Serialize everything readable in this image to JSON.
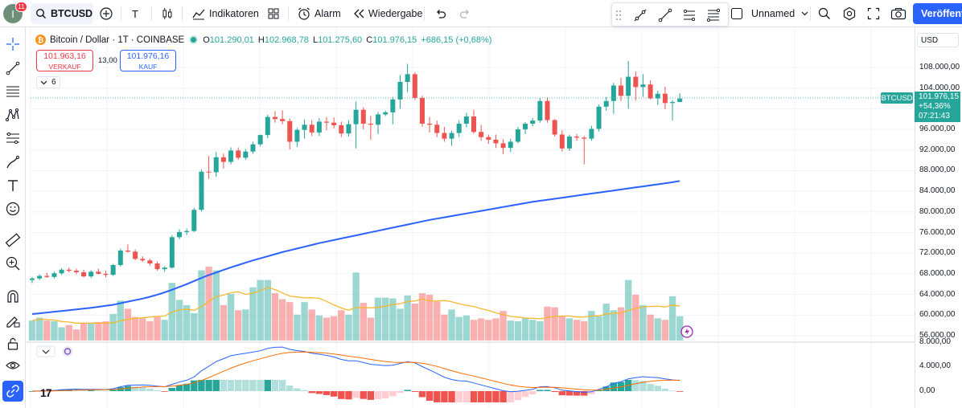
{
  "topbar": {
    "avatar_initial": "I",
    "notification_count": "11",
    "symbol": "BTCUSD",
    "indicators_label": "Indikatoren",
    "alarm_label": "Alarm",
    "replay_label": "Wiedergabe",
    "layout_name": "Unnamed",
    "publish_label": "Veröffentl"
  },
  "legend": {
    "title": "Bitcoin / Dollar · 1T · COINBASE",
    "open_key": "O",
    "open": "101.290,01",
    "high_key": "H",
    "high": "102.968,78",
    "low_key": "L",
    "low": "101.275,60",
    "close_key": "C",
    "close": "101.976,15",
    "change": "+686,15 (+0,68%)"
  },
  "trade": {
    "sell_price": "101.963,16",
    "sell_label": "VERKAUF",
    "spread": "13,00",
    "buy_price": "101.976,16",
    "buy_label": "KAUF",
    "indicator_count": "6"
  },
  "price_axis": {
    "currency": "USD",
    "ticks": [
      "108.000,00",
      "104.000,00",
      "100.000,00",
      "96.000,00",
      "92.000,00",
      "88.000,00",
      "84.000,00",
      "80.000,00",
      "76.000,00",
      "72.000,00",
      "68.000,00",
      "64.000,00",
      "60.000,00",
      "56.000,00"
    ],
    "osc_ticks": [
      "8.000,00",
      "4.000,00",
      "0,00"
    ],
    "last_price": "101.976,15",
    "last_change_pct": "+54,36%",
    "countdown": "07:21:43",
    "symbol_tag": "BTCUSD"
  },
  "colors": {
    "up": "#26a69a",
    "down": "#ef5350",
    "ma": "#2962ff",
    "volume_ma": "#f5b82e",
    "macd_line": "#2962ff",
    "signal_line": "#ff6d00",
    "accent": "#2962ff"
  },
  "chart_data": {
    "type": "candlestick",
    "symbol": "BTCUSD",
    "interval": "1T",
    "exchange": "COINBASE",
    "ylim": [
      56000,
      110000
    ],
    "candles": [
      [
        66800,
        67400,
        66200,
        67100
      ],
      [
        67100,
        67900,
        66800,
        67600
      ],
      [
        67600,
        68200,
        67200,
        67400
      ],
      [
        67400,
        68400,
        67100,
        68100
      ],
      [
        68100,
        69100,
        67800,
        68800
      ],
      [
        68800,
        69200,
        68300,
        68600
      ],
      [
        68600,
        69000,
        67900,
        68300
      ],
      [
        68300,
        68800,
        67300,
        67500
      ],
      [
        67500,
        68700,
        67200,
        68400
      ],
      [
        68400,
        69000,
        67900,
        68000
      ],
      [
        68000,
        68600,
        67300,
        67800
      ],
      [
        67800,
        69900,
        67600,
        69700
      ],
      [
        69700,
        72900,
        69400,
        72500
      ],
      [
        72500,
        73700,
        72100,
        72300
      ],
      [
        72300,
        72700,
        70600,
        70900
      ],
      [
        70900,
        71400,
        70300,
        70600
      ],
      [
        70600,
        70900,
        69600,
        70000
      ],
      [
        70000,
        70400,
        68600,
        68900
      ],
      [
        68900,
        69500,
        68400,
        69200
      ],
      [
        69200,
        75500,
        69000,
        75100
      ],
      [
        75100,
        76600,
        74700,
        76100
      ],
      [
        76100,
        76800,
        75500,
        76300
      ],
      [
        76300,
        80800,
        76100,
        80400
      ],
      [
        80400,
        88200,
        80100,
        87800
      ],
      [
        87800,
        90800,
        86400,
        87700
      ],
      [
        87700,
        91600,
        86800,
        90600
      ],
      [
        90600,
        91300,
        88400,
        89700
      ],
      [
        89700,
        92500,
        89200,
        91900
      ],
      [
        91900,
        92500,
        90100,
        90500
      ],
      [
        90500,
        92200,
        90100,
        91700
      ],
      [
        91700,
        93600,
        91300,
        93100
      ],
      [
        93100,
        95000,
        92700,
        94900
      ],
      [
        94900,
        98800,
        94300,
        98400
      ],
      [
        98400,
        99500,
        97300,
        98000
      ],
      [
        98000,
        99700,
        97000,
        97600
      ],
      [
        97600,
        98100,
        92100,
        93600
      ],
      [
        93600,
        96300,
        92600,
        95900
      ],
      [
        95900,
        97900,
        94200,
        96900
      ],
      [
        96900,
        97800,
        94700,
        95400
      ],
      [
        95400,
        98200,
        94700,
        97500
      ],
      [
        97500,
        98400,
        95800,
        97300
      ],
      [
        97300,
        98300,
        96200,
        96800
      ],
      [
        96800,
        97500,
        94500,
        95200
      ],
      [
        95200,
        97800,
        94600,
        97000
      ],
      [
        97000,
        101400,
        92300,
        99800
      ],
      [
        99800,
        100300,
        96000,
        97100
      ],
      [
        97100,
        98600,
        94000,
        96900
      ],
      [
        96900,
        99400,
        95100,
        98900
      ],
      [
        98900,
        99600,
        98600,
        99300
      ],
      [
        99300,
        102300,
        97000,
        101800
      ],
      [
        101800,
        106500,
        100000,
        105200
      ],
      [
        105200,
        108700,
        103200,
        106700
      ],
      [
        106700,
        107100,
        101700,
        102100
      ],
      [
        102100,
        102500,
        96500,
        97100
      ],
      [
        97100,
        98400,
        95400,
        96900
      ],
      [
        96900,
        97700,
        94500,
        95300
      ],
      [
        95300,
        96500,
        93600,
        94200
      ],
      [
        94200,
        95700,
        92800,
        95300
      ],
      [
        95300,
        97800,
        94500,
        97100
      ],
      [
        97100,
        99200,
        96400,
        98500
      ],
      [
        98500,
        99800,
        95200,
        95500
      ],
      [
        95500,
        96900,
        93800,
        94500
      ],
      [
        94500,
        95000,
        93200,
        94000
      ],
      [
        94000,
        95000,
        92400,
        93300
      ],
      [
        93300,
        94100,
        91200,
        92400
      ],
      [
        92400,
        94200,
        91600,
        93600
      ],
      [
        93600,
        96500,
        93300,
        96000
      ],
      [
        96000,
        97400,
        95100,
        97100
      ],
      [
        97100,
        98200,
        96600,
        97700
      ],
      [
        97700,
        102100,
        97300,
        101500
      ],
      [
        101500,
        102200,
        97300,
        97800
      ],
      [
        97800,
        98000,
        94600,
        95000
      ],
      [
        95000,
        95800,
        91700,
        92300
      ],
      [
        92300,
        95000,
        91800,
        94600
      ],
      [
        94600,
        95100,
        93800,
        94400
      ],
      [
        94400,
        94700,
        89200,
        94200
      ],
      [
        94200,
        96700,
        93800,
        96100
      ],
      [
        96100,
        100800,
        95600,
        100400
      ],
      [
        100400,
        102300,
        99600,
        101500
      ],
      [
        101500,
        105000,
        99000,
        104500
      ],
      [
        104500,
        106000,
        101500,
        102500
      ],
      [
        102500,
        109300,
        100000,
        106200
      ],
      [
        106200,
        107200,
        101600,
        104200
      ],
      [
        104200,
        106700,
        102300,
        104700
      ],
      [
        104700,
        105500,
        101800,
        102000
      ],
      [
        102000,
        103500,
        100700,
        102900
      ],
      [
        102900,
        104300,
        99900,
        101100
      ],
      [
        101100,
        101700,
        97700,
        101300
      ],
      [
        101300,
        102970,
        101280,
        101976
      ]
    ],
    "ma_line": [
      60200,
      60350,
      60500,
      60650,
      60800,
      60950,
      61100,
      61250,
      61400,
      61600,
      61800,
      62000,
      62300,
      62600,
      62900,
      63200,
      63550,
      63950,
      64400,
      64900,
      65450,
      66000,
      66600,
      67200,
      67750,
      68250,
      68750,
      69250,
      69700,
      70150,
      70600,
      71000,
      71400,
      71800,
      72200,
      72550,
      72900,
      73250,
      73600,
      73950,
      74250,
      74550,
      74850,
      75150,
      75450,
      75750,
      76050,
      76350,
      76650,
      76950,
      77250,
      77550,
      77850,
      78150,
      78450,
      78700,
      78950,
      79200,
      79450,
      79700,
      79950,
      80200,
      80450,
      80700,
      80950,
      81200,
      81450,
      81700,
      81950,
      82150,
      82350,
      82550,
      82750,
      82950,
      83150,
      83350,
      83550,
      83750,
      83950,
      84150,
      84350,
      84550,
      84750,
      84950,
      85150,
      85350,
      85550,
      85750,
      86000
    ],
    "volume_relative": [
      0.27,
      0.31,
      0.27,
      0.26,
      0.18,
      0.21,
      0.15,
      0.24,
      0.23,
      0.25,
      0.26,
      0.36,
      0.54,
      0.43,
      0.32,
      0.3,
      0.26,
      0.32,
      0.28,
      0.78,
      0.55,
      0.48,
      0.37,
      0.95,
      1.0,
      0.95,
      0.48,
      0.63,
      0.41,
      0.42,
      0.72,
      0.82,
      0.82,
      0.64,
      0.56,
      0.52,
      0.35,
      0.52,
      0.42,
      0.34,
      0.31,
      0.33,
      0.41,
      0.35,
      0.92,
      0.51,
      0.31,
      0.58,
      0.58,
      0.57,
      0.43,
      0.61,
      0.5,
      0.64,
      0.62,
      0.53,
      0.35,
      0.42,
      0.32,
      0.34,
      0.28,
      0.3,
      0.28,
      0.3,
      0.4,
      0.27,
      0.26,
      0.3,
      0.28,
      0.26,
      0.46,
      0.45,
      0.33,
      0.3,
      0.28,
      0.26,
      0.4,
      0.33,
      0.5,
      0.41,
      0.45,
      0.82,
      0.62,
      0.48,
      0.35,
      0.3,
      0.28,
      0.6,
      0.33
    ]
  }
}
